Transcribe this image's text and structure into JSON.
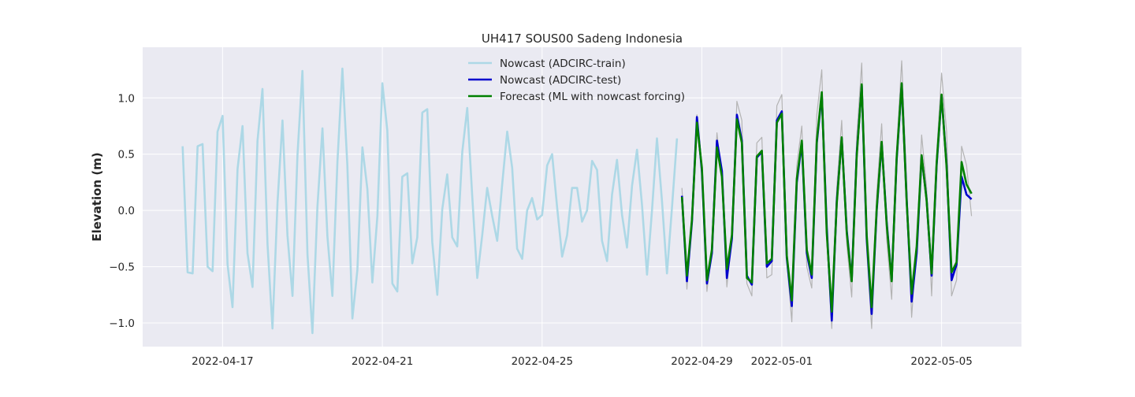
{
  "chart_data": {
    "type": "line",
    "title": "UH417 SOUS00 Sadeng Indonesia",
    "xlabel": "",
    "ylabel": "Elevation (m)",
    "x_is_date": true,
    "xlim": [
      "2022-04-15T00:00",
      "2022-05-07T00:00"
    ],
    "ylim": [
      -1.21,
      1.45
    ],
    "grid": true,
    "legend": "top-center",
    "x_tick_labels": [
      "2022-04-17",
      "2022-04-21",
      "2022-04-25",
      "2022-04-29",
      "2022-05-01",
      "2022-05-05"
    ],
    "y_tick_values": [
      -1.0,
      -0.5,
      0.0,
      0.5,
      1.0
    ],
    "y_tick_labels": [
      "−1.0",
      "−0.5",
      "0.0",
      "0.5",
      "1.0"
    ],
    "colors": {
      "background": "#eaeaf2",
      "grid": "#ffffff",
      "observed": "#b3b3b3",
      "train": "#add8e6",
      "test": "#0000cd",
      "forecast": "#008000"
    },
    "series": [
      {
        "name": "Nowcast (ADCIRC-train)",
        "color": "#add8e6",
        "x": [
          "2022-04-16T00:00",
          "2022-04-16T03:00",
          "2022-04-16T06:00",
          "2022-04-16T09:00",
          "2022-04-16T12:00",
          "2022-04-16T15:00",
          "2022-04-16T18:00",
          "2022-04-16T21:00",
          "2022-04-17T00:00",
          "2022-04-17T03:00",
          "2022-04-17T06:00",
          "2022-04-17T09:00",
          "2022-04-17T12:00",
          "2022-04-17T15:00",
          "2022-04-17T18:00",
          "2022-04-17T21:00",
          "2022-04-18T00:00",
          "2022-04-18T03:00",
          "2022-04-18T06:00",
          "2022-04-18T09:00",
          "2022-04-18T12:00",
          "2022-04-18T15:00",
          "2022-04-18T18:00",
          "2022-04-18T21:00",
          "2022-04-19T00:00",
          "2022-04-19T03:00",
          "2022-04-19T06:00",
          "2022-04-19T09:00",
          "2022-04-19T12:00",
          "2022-04-19T15:00",
          "2022-04-19T18:00",
          "2022-04-19T21:00",
          "2022-04-20T00:00",
          "2022-04-20T03:00",
          "2022-04-20T06:00",
          "2022-04-20T09:00",
          "2022-04-20T12:00",
          "2022-04-20T15:00",
          "2022-04-20T18:00",
          "2022-04-20T21:00",
          "2022-04-21T00:00",
          "2022-04-21T03:00",
          "2022-04-21T06:00",
          "2022-04-21T09:00",
          "2022-04-21T12:00",
          "2022-04-21T15:00",
          "2022-04-21T18:00",
          "2022-04-21T21:00",
          "2022-04-22T00:00",
          "2022-04-22T03:00",
          "2022-04-22T06:00",
          "2022-04-22T09:00",
          "2022-04-22T12:00",
          "2022-04-22T15:00",
          "2022-04-22T18:00",
          "2022-04-22T21:00",
          "2022-04-23T00:00",
          "2022-04-23T03:00",
          "2022-04-23T06:00",
          "2022-04-23T09:00",
          "2022-04-23T12:00",
          "2022-04-23T15:00",
          "2022-04-23T18:00",
          "2022-04-23T21:00",
          "2022-04-24T00:00",
          "2022-04-24T03:00",
          "2022-04-24T06:00",
          "2022-04-24T09:00",
          "2022-04-24T12:00",
          "2022-04-24T15:00",
          "2022-04-24T18:00",
          "2022-04-24T21:00",
          "2022-04-25T00:00",
          "2022-04-25T03:00",
          "2022-04-25T06:00",
          "2022-04-25T09:00",
          "2022-04-25T12:00",
          "2022-04-25T15:00",
          "2022-04-25T18:00",
          "2022-04-25T21:00",
          "2022-04-26T00:00",
          "2022-04-26T03:00",
          "2022-04-26T06:00",
          "2022-04-26T09:00",
          "2022-04-26T12:00",
          "2022-04-26T15:00",
          "2022-04-26T18:00",
          "2022-04-26T21:00",
          "2022-04-27T00:00",
          "2022-04-27T03:00",
          "2022-04-27T06:00",
          "2022-04-27T09:00",
          "2022-04-27T12:00",
          "2022-04-27T15:00",
          "2022-04-27T18:00",
          "2022-04-27T21:00",
          "2022-04-28T00:00",
          "2022-04-28T03:00",
          "2022-04-28T06:00",
          "2022-04-28T09:00"
        ],
        "values": [
          0.57,
          -0.55,
          -0.56,
          0.57,
          0.59,
          -0.5,
          -0.54,
          0.7,
          0.84,
          -0.48,
          -0.86,
          0.37,
          0.75,
          -0.38,
          -0.68,
          0.62,
          1.08,
          -0.3,
          -1.05,
          0.07,
          0.8,
          -0.22,
          -0.76,
          0.49,
          1.24,
          -0.39,
          -1.09,
          0.03,
          0.73,
          -0.23,
          -0.76,
          0.43,
          1.26,
          0.4,
          -0.96,
          -0.53,
          0.56,
          0.19,
          -0.64,
          -0.05,
          1.13,
          0.71,
          -0.65,
          -0.72,
          0.3,
          0.33,
          -0.47,
          -0.24,
          0.87,
          0.9,
          -0.28,
          -0.75,
          0.01,
          0.32,
          -0.24,
          -0.32,
          0.52,
          0.91,
          0.13,
          -0.6,
          -0.22,
          0.2,
          -0.05,
          -0.27,
          0.23,
          0.7,
          0.38,
          -0.34,
          -0.43,
          0.0,
          0.11,
          -0.08,
          -0.04,
          0.4,
          0.5,
          0.03,
          -0.41,
          -0.22,
          0.2,
          0.2,
          -0.1,
          0.0,
          0.44,
          0.36,
          -0.27,
          -0.45,
          0.14,
          0.45,
          -0.04,
          -0.33,
          0.22,
          0.54,
          0.05,
          -0.57,
          0.0,
          0.64,
          0.08,
          -0.56,
          0.02,
          0.64
        ]
      },
      {
        "name": "Nowcast (ADCIRC-test)",
        "color": "#0000cd",
        "x": [
          "2022-04-28T12:00",
          "2022-04-28T15:00",
          "2022-04-28T18:00",
          "2022-04-28T21:00",
          "2022-04-29T00:00",
          "2022-04-29T03:00",
          "2022-04-29T06:00",
          "2022-04-29T09:00",
          "2022-04-29T12:00",
          "2022-04-29T15:00",
          "2022-04-29T18:00",
          "2022-04-29T21:00",
          "2022-04-30T00:00",
          "2022-04-30T03:00",
          "2022-04-30T06:00",
          "2022-04-30T09:00",
          "2022-04-30T12:00",
          "2022-04-30T15:00",
          "2022-04-30T18:00",
          "2022-04-30T21:00",
          "2022-05-01T00:00",
          "2022-05-01T03:00",
          "2022-05-01T06:00",
          "2022-05-01T09:00",
          "2022-05-01T12:00",
          "2022-05-01T15:00",
          "2022-05-01T18:00",
          "2022-05-01T21:00",
          "2022-05-02T00:00",
          "2022-05-02T03:00",
          "2022-05-02T06:00",
          "2022-05-02T09:00",
          "2022-05-02T12:00",
          "2022-05-02T15:00",
          "2022-05-02T18:00",
          "2022-05-02T21:00",
          "2022-05-03T00:00",
          "2022-05-03T03:00",
          "2022-05-03T06:00",
          "2022-05-03T09:00",
          "2022-05-03T12:00",
          "2022-05-03T15:00",
          "2022-05-03T18:00",
          "2022-05-03T21:00",
          "2022-05-04T00:00",
          "2022-05-04T03:00",
          "2022-05-04T06:00",
          "2022-05-04T09:00",
          "2022-05-04T12:00",
          "2022-05-04T15:00",
          "2022-05-04T18:00",
          "2022-05-04T21:00",
          "2022-05-05T00:00",
          "2022-05-05T03:00",
          "2022-05-05T06:00",
          "2022-05-05T09:00",
          "2022-05-05T12:00",
          "2022-05-05T15:00",
          "2022-05-05T18:00"
        ],
        "values": [
          0.13,
          -0.63,
          -0.1,
          0.83,
          0.35,
          -0.65,
          -0.38,
          0.62,
          0.35,
          -0.6,
          -0.25,
          0.85,
          0.62,
          -0.58,
          -0.66,
          0.47,
          0.52,
          -0.5,
          -0.45,
          0.8,
          0.88,
          -0.42,
          -0.85,
          0.25,
          0.6,
          -0.38,
          -0.6,
          0.6,
          1.03,
          -0.15,
          -0.98,
          0.08,
          0.64,
          -0.18,
          -0.62,
          0.5,
          1.11,
          -0.25,
          -0.92,
          0.0,
          0.6,
          -0.1,
          -0.62,
          0.45,
          1.12,
          0.1,
          -0.81,
          -0.38,
          0.48,
          0.1,
          -0.58,
          0.4,
          1.02,
          0.4,
          -0.62,
          -0.48,
          0.3,
          0.14,
          0.1
        ]
      },
      {
        "name": "Forecast (ML with nowcast forcing)",
        "color": "#008000",
        "x": [
          "2022-04-28T12:00",
          "2022-04-28T15:00",
          "2022-04-28T18:00",
          "2022-04-28T21:00",
          "2022-04-29T00:00",
          "2022-04-29T03:00",
          "2022-04-29T06:00",
          "2022-04-29T09:00",
          "2022-04-29T12:00",
          "2022-04-29T15:00",
          "2022-04-29T18:00",
          "2022-04-29T21:00",
          "2022-04-30T00:00",
          "2022-04-30T03:00",
          "2022-04-30T06:00",
          "2022-04-30T09:00",
          "2022-04-30T12:00",
          "2022-04-30T15:00",
          "2022-04-30T18:00",
          "2022-04-30T21:00",
          "2022-05-01T00:00",
          "2022-05-01T03:00",
          "2022-05-01T06:00",
          "2022-05-01T09:00",
          "2022-05-01T12:00",
          "2022-05-01T15:00",
          "2022-05-01T18:00",
          "2022-05-01T21:00",
          "2022-05-02T00:00",
          "2022-05-02T03:00",
          "2022-05-02T06:00",
          "2022-05-02T09:00",
          "2022-05-02T12:00",
          "2022-05-02T15:00",
          "2022-05-02T18:00",
          "2022-05-02T21:00",
          "2022-05-03T00:00",
          "2022-05-03T03:00",
          "2022-05-03T06:00",
          "2022-05-03T09:00",
          "2022-05-03T12:00",
          "2022-05-03T15:00",
          "2022-05-03T18:00",
          "2022-05-03T21:00",
          "2022-05-04T00:00",
          "2022-05-04T03:00",
          "2022-05-04T06:00",
          "2022-05-04T09:00",
          "2022-05-04T12:00",
          "2022-05-04T15:00",
          "2022-05-04T18:00",
          "2022-05-04T21:00",
          "2022-05-05T00:00",
          "2022-05-05T03:00",
          "2022-05-05T06:00",
          "2022-05-05T09:00",
          "2022-05-05T12:00",
          "2022-05-05T15:00",
          "2022-05-05T18:00"
        ],
        "values": [
          0.12,
          -0.58,
          -0.08,
          0.78,
          0.38,
          -0.62,
          -0.35,
          0.56,
          0.3,
          -0.52,
          -0.22,
          0.81,
          0.6,
          -0.6,
          -0.64,
          0.48,
          0.53,
          -0.47,
          -0.43,
          0.78,
          0.86,
          -0.4,
          -0.8,
          0.28,
          0.62,
          -0.35,
          -0.57,
          0.62,
          1.05,
          -0.2,
          -0.9,
          0.06,
          0.65,
          -0.2,
          -0.63,
          0.48,
          1.12,
          -0.22,
          -0.86,
          0.02,
          0.61,
          -0.12,
          -0.63,
          0.47,
          1.13,
          0.08,
          -0.74,
          -0.32,
          0.49,
          0.09,
          -0.56,
          0.42,
          1.03,
          0.38,
          -0.55,
          -0.46,
          0.43,
          0.23,
          0.15
        ]
      },
      {
        "color": "#b3b3b3",
        "x": [
          "2022-04-28T12:00",
          "2022-04-28T15:00",
          "2022-04-28T18:00",
          "2022-04-28T21:00",
          "2022-04-29T00:00",
          "2022-04-29T03:00",
          "2022-04-29T06:00",
          "2022-04-29T09:00",
          "2022-04-29T12:00",
          "2022-04-29T15:00",
          "2022-04-29T18:00",
          "2022-04-29T21:00",
          "2022-04-30T00:00",
          "2022-04-30T03:00",
          "2022-04-30T06:00",
          "2022-04-30T09:00",
          "2022-04-30T12:00",
          "2022-04-30T15:00",
          "2022-04-30T18:00",
          "2022-04-30T21:00",
          "2022-05-01T00:00",
          "2022-05-01T03:00",
          "2022-05-01T06:00",
          "2022-05-01T09:00",
          "2022-05-01T12:00",
          "2022-05-01T15:00",
          "2022-05-01T18:00",
          "2022-05-01T21:00",
          "2022-05-02T00:00",
          "2022-05-02T03:00",
          "2022-05-02T06:00",
          "2022-05-02T09:00",
          "2022-05-02T12:00",
          "2022-05-02T15:00",
          "2022-05-02T18:00",
          "2022-05-02T21:00",
          "2022-05-03T00:00",
          "2022-05-03T03:00",
          "2022-05-03T06:00",
          "2022-05-03T09:00",
          "2022-05-03T12:00",
          "2022-05-03T15:00",
          "2022-05-03T18:00",
          "2022-05-03T21:00",
          "2022-05-04T00:00",
          "2022-05-04T03:00",
          "2022-05-04T06:00",
          "2022-05-04T09:00",
          "2022-05-04T12:00",
          "2022-05-04T15:00",
          "2022-05-04T18:00",
          "2022-05-04T21:00",
          "2022-05-05T00:00",
          "2022-05-05T03:00",
          "2022-05-05T06:00",
          "2022-05-05T09:00",
          "2022-05-05T12:00",
          "2022-05-05T15:00",
          "2022-05-05T18:00"
        ],
        "values": [
          0.2,
          -0.7,
          -0.05,
          0.85,
          0.3,
          -0.72,
          -0.3,
          0.69,
          0.28,
          -0.68,
          -0.2,
          0.97,
          0.8,
          -0.65,
          -0.76,
          0.6,
          0.65,
          -0.6,
          -0.57,
          0.93,
          1.03,
          -0.45,
          -0.99,
          0.4,
          0.75,
          -0.5,
          -0.69,
          0.85,
          1.25,
          -0.25,
          -1.05,
          0.2,
          0.8,
          -0.3,
          -0.77,
          0.65,
          1.31,
          -0.35,
          -1.05,
          0.15,
          0.77,
          -0.25,
          -0.79,
          0.55,
          1.33,
          0.25,
          -0.95,
          -0.3,
          0.67,
          0.2,
          -0.76,
          0.5,
          1.22,
          0.7,
          -0.76,
          -0.62,
          0.57,
          0.4,
          -0.05
        ]
      }
    ]
  }
}
